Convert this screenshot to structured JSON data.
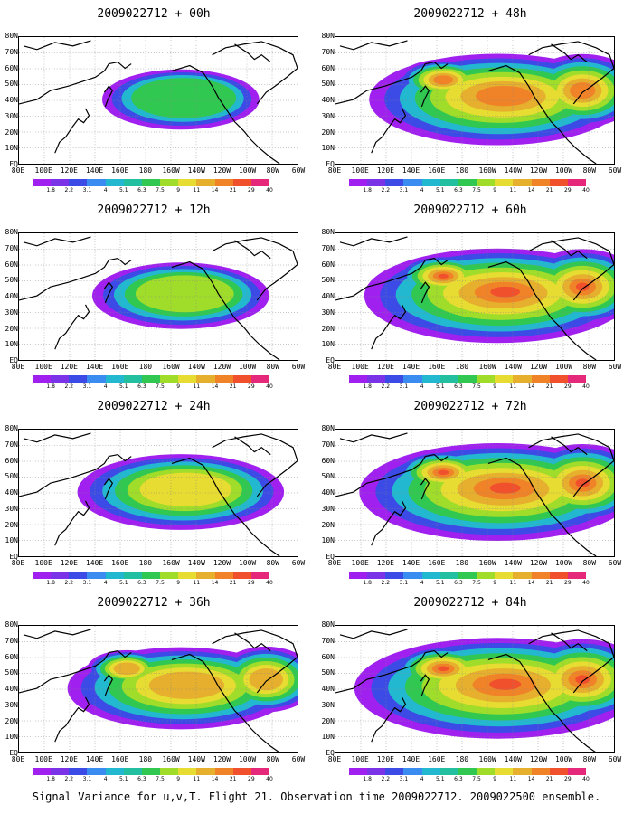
{
  "panels": [
    {
      "title": "2009022712 + 00h",
      "intensity": 0.25
    },
    {
      "title": "2009022712 + 48h",
      "intensity": 0.75
    },
    {
      "title": "2009022712 + 12h",
      "intensity": 0.35
    },
    {
      "title": "2009022712 + 60h",
      "intensity": 0.8
    },
    {
      "title": "2009022712 + 24h",
      "intensity": 0.5
    },
    {
      "title": "2009022712 + 72h",
      "intensity": 0.85
    },
    {
      "title": "2009022712 + 36h",
      "intensity": 0.6
    },
    {
      "title": "2009022712 + 84h",
      "intensity": 0.9
    }
  ],
  "lat_labels": [
    "80N",
    "70N",
    "60N",
    "50N",
    "40N",
    "30N",
    "20N",
    "10N",
    "EQ"
  ],
  "lon_labels": [
    "80E",
    "100E",
    "120E",
    "140E",
    "160E",
    "180",
    "160W",
    "140W",
    "120W",
    "100W",
    "80W",
    "60W"
  ],
  "colorbar": {
    "labels": [
      "1.8",
      "2.2",
      "3.1",
      "4",
      "5.1",
      "6.3",
      "7.5",
      "9",
      "11",
      "14",
      "21",
      "29",
      "40"
    ],
    "colors": [
      "#a020f0",
      "#7a33e6",
      "#3c4be6",
      "#3a8cf0",
      "#22b8d0",
      "#22c0a0",
      "#30c850",
      "#a0dc2a",
      "#e6dc32",
      "#e6af2d",
      "#f08228",
      "#f0502c",
      "#e6287a"
    ]
  },
  "caption": "Signal Variance for u,v,T. Flight 21. Observation time 2009022712. 2009022500 ensemble."
}
